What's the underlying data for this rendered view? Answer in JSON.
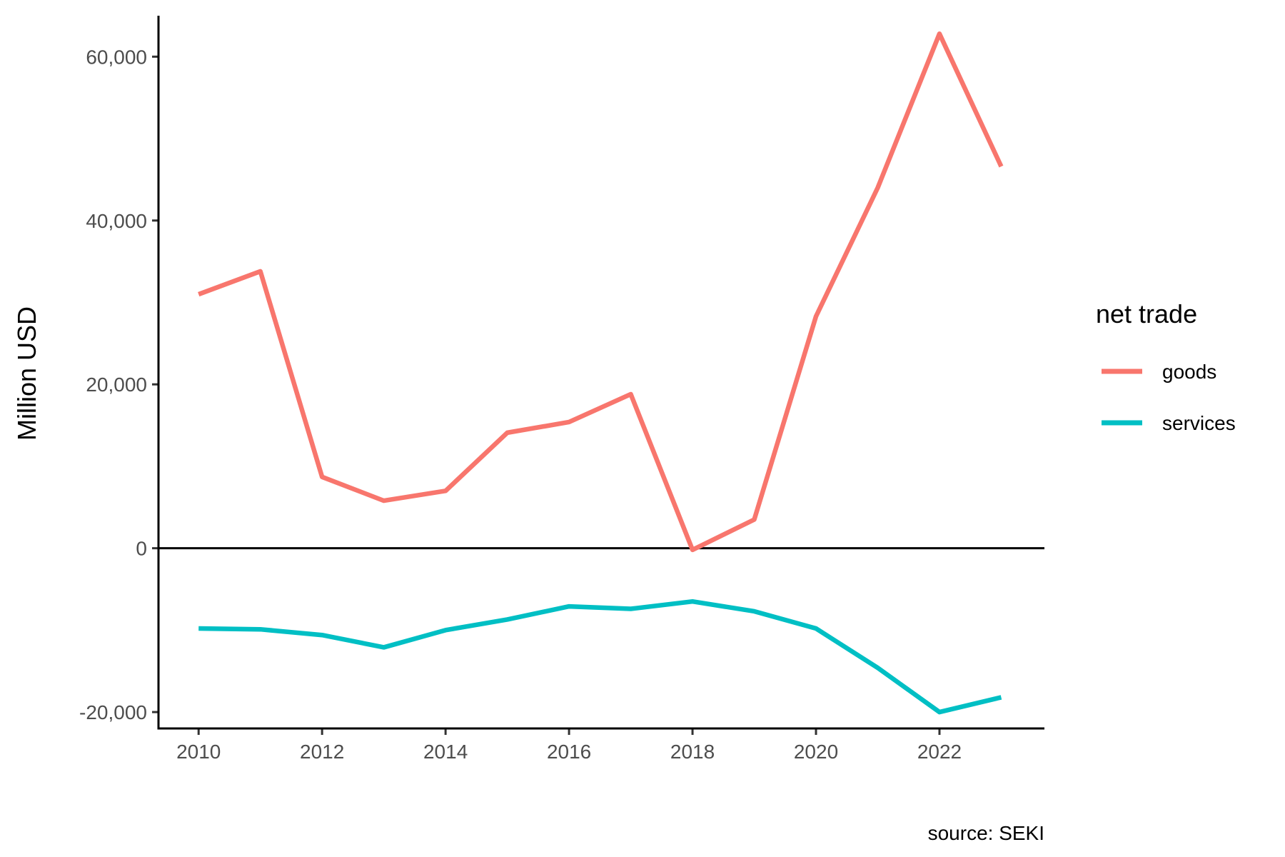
{
  "chart_data": {
    "type": "line",
    "title": "",
    "xlabel": "",
    "ylabel": "Million USD",
    "caption": "source: SEKI",
    "x": [
      2010,
      2011,
      2012,
      2013,
      2014,
      2015,
      2016,
      2017,
      2018,
      2019,
      2020,
      2021,
      2022,
      2023
    ],
    "xticks": [
      "2010",
      "2012",
      "2014",
      "2016",
      "2018",
      "2020",
      "2022"
    ],
    "xlim": [
      2009.35,
      2023.7
    ],
    "yticks": [
      -20000,
      0,
      20000,
      40000,
      60000
    ],
    "ytick_labels": [
      "-20,000",
      "0",
      "20,000",
      "40,000",
      "60,000"
    ],
    "ylim": [
      -22000,
      65000
    ],
    "zero_line": true,
    "grid": false,
    "legend": {
      "title": "net trade",
      "position": "right"
    },
    "series": [
      {
        "name": "goods",
        "color": "#F8766D",
        "values": [
          31000,
          33800,
          8700,
          5800,
          7000,
          14100,
          15400,
          18800,
          -200,
          3500,
          28300,
          44000,
          62800,
          46600
        ]
      },
      {
        "name": "services",
        "color": "#00BFC4",
        "values": [
          -9800,
          -9900,
          -10600,
          -12100,
          -10000,
          -8700,
          -7100,
          -7400,
          -6500,
          -7700,
          -9800,
          -14600,
          -20000,
          -18200
        ]
      }
    ]
  }
}
